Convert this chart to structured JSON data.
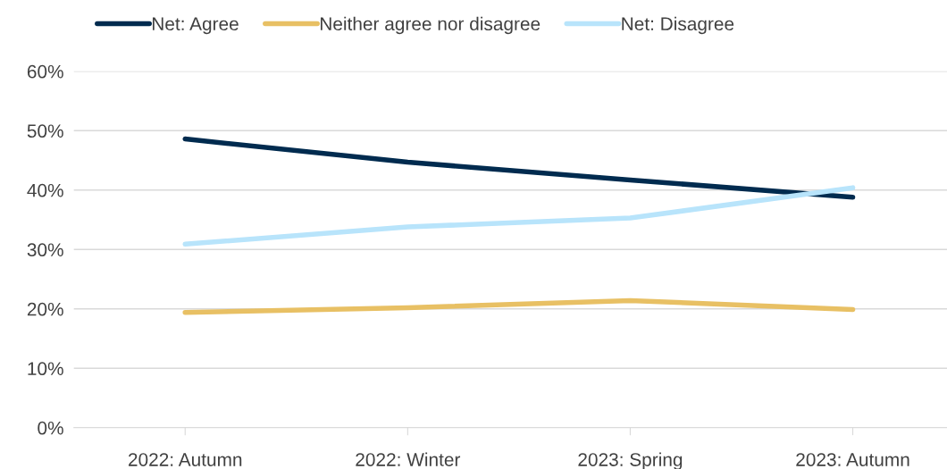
{
  "chart_data": {
    "type": "line",
    "categories": [
      "2022: Autumn",
      "2022: Winter",
      "2023: Spring",
      "2023: Autumn"
    ],
    "series": [
      {
        "name": "Net: Agree",
        "color": "#002b4f",
        "values": [
          48.6,
          44.7,
          41.7,
          38.8
        ]
      },
      {
        "name": "Neither agree nor disagree",
        "color": "#e8c064",
        "values": [
          19.4,
          20.2,
          21.4,
          19.9
        ]
      },
      {
        "name": "Net: Disagree",
        "color": "#b8e4fb",
        "values": [
          30.9,
          33.8,
          35.3,
          40.4
        ]
      }
    ],
    "ylim": [
      0,
      60
    ],
    "yticks": [
      {
        "value": 0,
        "label": "0%"
      },
      {
        "value": 10,
        "label": "10%"
      },
      {
        "value": 20,
        "label": "20%"
      },
      {
        "value": 30,
        "label": "30%"
      },
      {
        "value": 40,
        "label": "40%"
      },
      {
        "value": 50,
        "label": "50%"
      },
      {
        "value": 60,
        "label": "60%"
      }
    ],
    "grid": "y",
    "legend": "top",
    "marker": "none",
    "line_style": "solid"
  }
}
